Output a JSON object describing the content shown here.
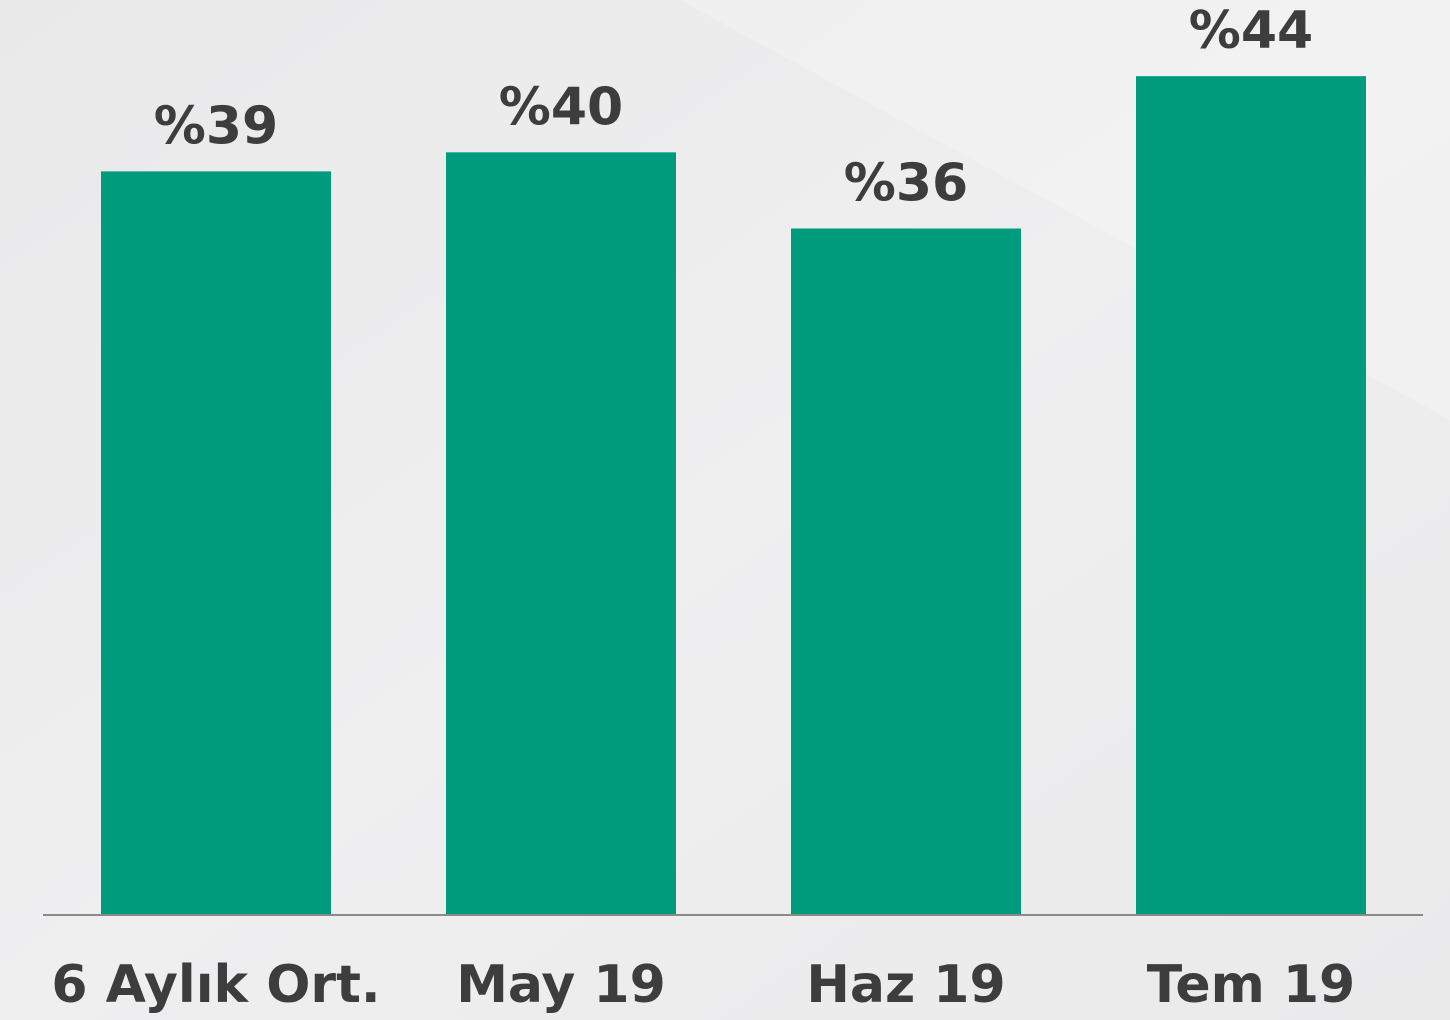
{
  "chart_data": {
    "type": "bar",
    "categories": [
      "6 Aylık Ort.",
      "May 19",
      "Haz 19",
      "Tem 19"
    ],
    "values": [
      39,
      40,
      36,
      44
    ],
    "value_labels": [
      "%39",
      "%40",
      "%36",
      "%44"
    ],
    "color": "#009b7d",
    "ylim": [
      0,
      48
    ]
  }
}
